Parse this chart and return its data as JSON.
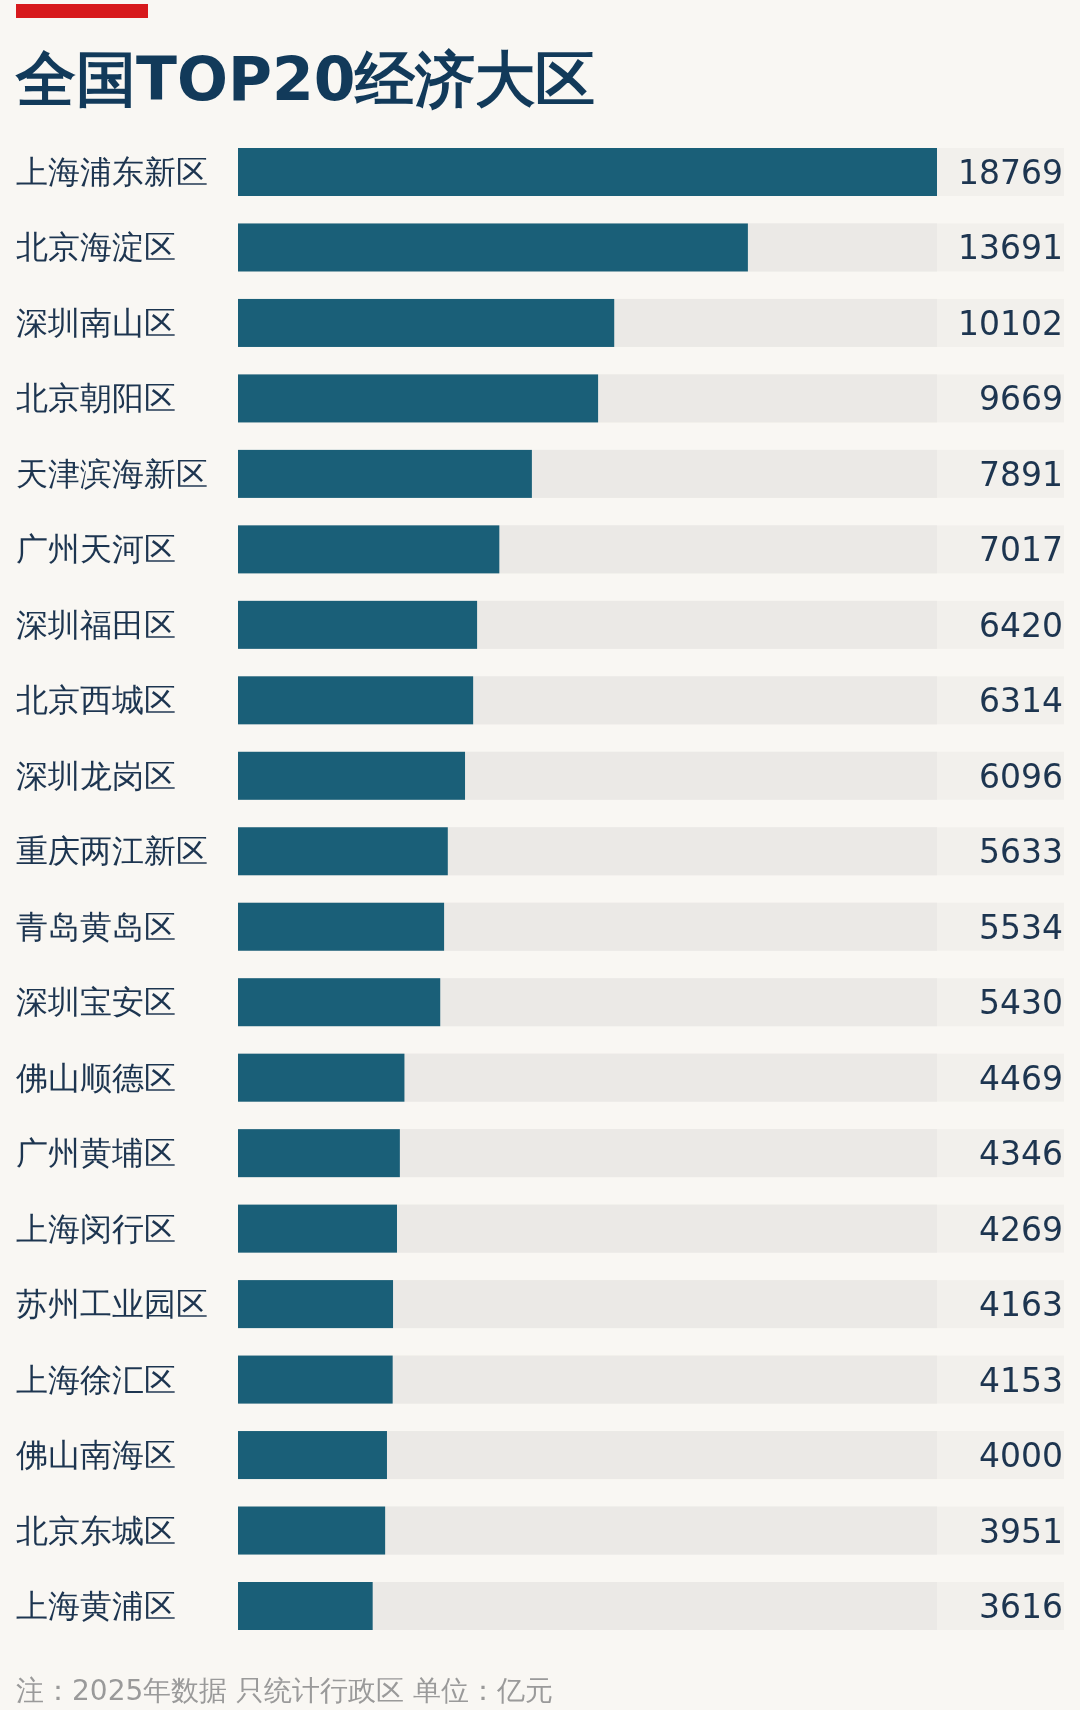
{
  "chart_data": {
    "type": "bar",
    "orientation": "horizontal",
    "title": "全国TOP20经济大区",
    "categories": [
      "上海浦东新区",
      "北京海淀区",
      "深圳南山区",
      "北京朝阳区",
      "天津滨海新区",
      "广州天河区",
      "深圳福田区",
      "北京西城区",
      "深圳龙岗区",
      "重庆两江新区",
      "青岛黄岛区",
      "深圳宝安区",
      "佛山顺德区",
      "广州黄埔区",
      "上海闵行区",
      "苏州工业园区",
      "上海徐汇区",
      "佛山南海区",
      "北京东城区",
      "上海黄浦区"
    ],
    "values": [
      18769,
      13691,
      10102,
      9669,
      7891,
      7017,
      6420,
      6314,
      6096,
      5633,
      5534,
      5430,
      4469,
      4346,
      4269,
      4163,
      4153,
      4000,
      3951,
      3616
    ],
    "color": "#1a5f78",
    "data_labels": true,
    "annotations": [
      "注：2025年数据 只统计行政区 单位：亿元"
    ]
  }
}
